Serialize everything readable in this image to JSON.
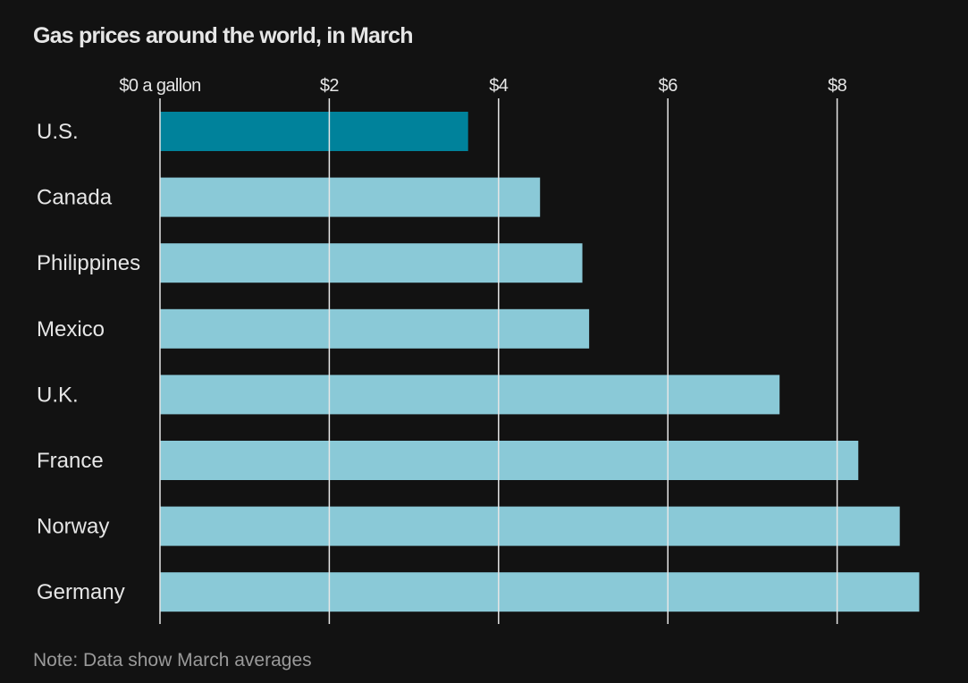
{
  "chart_data": {
    "type": "bar",
    "orientation": "horizontal",
    "title": "Gas prices around the world, in March",
    "note": "Note: Data show March averages",
    "xlabel": "",
    "ylabel": "",
    "xlim": [
      0,
      9
    ],
    "x_ticks": [
      0,
      2,
      4,
      6,
      8
    ],
    "x_tick_labels": [
      "$0 a gallon",
      "$2",
      "$4",
      "$6",
      "$8"
    ],
    "grid": true,
    "categories": [
      "U.S.",
      "Canada",
      "Philippines",
      "Mexico",
      "U.K.",
      "France",
      "Norway",
      "Germany"
    ],
    "values": [
      3.64,
      4.49,
      4.99,
      5.07,
      7.32,
      8.25,
      8.74,
      8.97
    ],
    "highlight": "U.S.",
    "colors": {
      "highlight": "#00829b",
      "default": "#8ac9d7",
      "grid": "#e6e6e6",
      "background": "#121212"
    }
  }
}
